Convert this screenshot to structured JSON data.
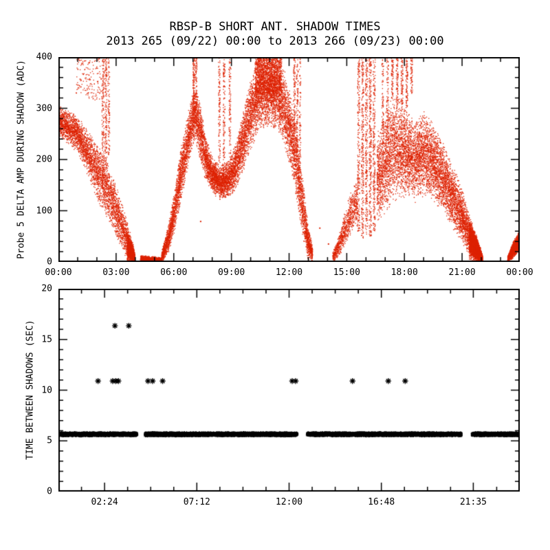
{
  "title": "RBSP-B SHORT ANT. SHADOW TIMES",
  "subtitle": "2013 265 (09/22) 00:00 to 2013 266 (09/23) 00:00",
  "colors": {
    "background": "#ffffff",
    "axis": "#000000",
    "top_panel_points": "#dd2200",
    "bottom_panel_points": "#000000"
  },
  "chart_data": [
    {
      "type": "scatter",
      "id": "delta-amp",
      "panel": "top",
      "ylabel": "Probe 5 DELTA AMP DURING SHADOW (ADC)",
      "marker": "dot",
      "marker_color": "#dd2200",
      "x_range_hours": [
        0,
        24
      ],
      "y_range": [
        0,
        400
      ],
      "x_major_ticks": [
        {
          "hour": 0,
          "label": "00:00"
        },
        {
          "hour": 3,
          "label": "03:00"
        },
        {
          "hour": 6,
          "label": "06:00"
        },
        {
          "hour": 9,
          "label": "09:00"
        },
        {
          "hour": 12,
          "label": "12:00"
        },
        {
          "hour": 15,
          "label": "15:00"
        },
        {
          "hour": 18,
          "label": "18:00"
        },
        {
          "hour": 21,
          "label": "21:00"
        },
        {
          "hour": 24,
          "label": "00:00"
        }
      ],
      "x_minor_step_hours": 1,
      "y_major_ticks": [
        {
          "value": 0,
          "label": "0"
        },
        {
          "value": 100,
          "label": "100"
        },
        {
          "value": 200,
          "label": "200"
        },
        {
          "value": 300,
          "label": "300"
        },
        {
          "value": 400,
          "label": "400"
        }
      ],
      "y_minor_step": 20,
      "bands": [
        {
          "name": "dawn-descend",
          "density": 950,
          "weight": "center",
          "pts": [
            [
              0.0,
              245,
              310
            ],
            [
              0.5,
              228,
              298
            ],
            [
              1.0,
              212,
              286
            ],
            [
              1.5,
              168,
              262
            ],
            [
              2.0,
              118,
              236
            ],
            [
              2.5,
              84,
              204
            ],
            [
              3.0,
              44,
              150
            ],
            [
              3.4,
              14,
              104
            ],
            [
              3.7,
              0,
              62
            ],
            [
              3.95,
              0,
              24
            ]
          ]
        },
        {
          "name": "dawn-blob",
          "density": 3200,
          "weight": "center",
          "pts": [
            [
              3.55,
              0,
              56
            ],
            [
              3.75,
              0,
              44
            ],
            [
              3.95,
              0,
              18
            ]
          ]
        },
        {
          "name": "morning-high-sparse",
          "density": 120,
          "weight": "uniform",
          "pts": [
            [
              0.9,
              330,
              400
            ],
            [
              2.3,
              310,
              400
            ]
          ]
        },
        {
          "name": "early-flat",
          "density": 2700,
          "weight": "bottom",
          "pts": [
            [
              4.25,
              0,
              14
            ],
            [
              4.8,
              0,
              12
            ],
            [
              5.35,
              0,
              10
            ]
          ]
        },
        {
          "name": "mountain",
          "density": 1300,
          "weight": "center",
          "pts": [
            [
              5.35,
              0,
              22
            ],
            [
              5.7,
              14,
              76
            ],
            [
              6.0,
              55,
              140
            ],
            [
              6.3,
              105,
              215
            ],
            [
              6.6,
              160,
              275
            ],
            [
              6.9,
              215,
              325
            ],
            [
              7.1,
              235,
              350
            ],
            [
              7.3,
              205,
              325
            ],
            [
              7.6,
              160,
              255
            ],
            [
              8.0,
              135,
              205
            ],
            [
              8.4,
              120,
              190
            ],
            [
              8.8,
              125,
              200
            ],
            [
              9.2,
              140,
              235
            ],
            [
              9.6,
              175,
              300
            ],
            [
              10.0,
              220,
              370
            ],
            [
              10.4,
              250,
              400
            ],
            [
              10.9,
              265,
              400
            ],
            [
              11.4,
              255,
              400
            ],
            [
              11.8,
              215,
              370
            ],
            [
              12.1,
              170,
              320
            ],
            [
              12.4,
              110,
              260
            ],
            [
              12.7,
              45,
              165
            ],
            [
              12.95,
              5,
              80
            ],
            [
              13.2,
              0,
              30
            ]
          ]
        },
        {
          "name": "midday-top-dense",
          "density": 900,
          "weight": "uniform",
          "pts": [
            [
              10.2,
              330,
              400
            ],
            [
              11.6,
              330,
              400
            ]
          ]
        },
        {
          "name": "afternoon-rise",
          "density": 650,
          "weight": "center",
          "pts": [
            [
              14.25,
              0,
              20
            ],
            [
              14.6,
              10,
              60
            ],
            [
              14.95,
              35,
              110
            ],
            [
              15.3,
              55,
              150
            ],
            [
              15.55,
              70,
              170
            ]
          ]
        },
        {
          "name": "evening-cloud",
          "density": 1250,
          "weight": "center",
          "pts": [
            [
              16.55,
              70,
              255
            ],
            [
              17.0,
              95,
              300
            ],
            [
              17.5,
              115,
              330
            ],
            [
              18.0,
              125,
              310
            ],
            [
              18.5,
              115,
              285
            ],
            [
              19.0,
              130,
              300
            ],
            [
              19.4,
              120,
              275
            ],
            [
              19.8,
              105,
              250
            ],
            [
              20.2,
              85,
              220
            ],
            [
              20.6,
              55,
              185
            ],
            [
              21.0,
              30,
              140
            ],
            [
              21.4,
              10,
              90
            ],
            [
              21.75,
              0,
              50
            ],
            [
              22.05,
              0,
              15
            ]
          ]
        },
        {
          "name": "dusk-wedge-dense",
          "density": 2900,
          "weight": "center",
          "pts": [
            [
              21.35,
              5,
              85
            ],
            [
              21.7,
              0,
              55
            ],
            [
              22.0,
              0,
              20
            ]
          ]
        },
        {
          "name": "night-wedge",
          "density": 2700,
          "weight": "center",
          "pts": [
            [
              23.35,
              0,
              12
            ],
            [
              23.6,
              6,
              38
            ],
            [
              23.8,
              14,
              52
            ],
            [
              24.0,
              24,
              65
            ]
          ]
        }
      ],
      "streaks": [
        {
          "h": 2.3,
          "w": 0.06,
          "lo": 150,
          "hi": 400,
          "n": 160
        },
        {
          "h": 2.45,
          "w": 0.05,
          "lo": 180,
          "hi": 400,
          "n": 140
        },
        {
          "h": 2.6,
          "w": 0.05,
          "lo": 210,
          "hi": 400,
          "n": 90
        },
        {
          "h": 7.02,
          "w": 0.05,
          "lo": 270,
          "hi": 400,
          "n": 130
        },
        {
          "h": 7.15,
          "w": 0.04,
          "lo": 300,
          "hi": 400,
          "n": 80
        },
        {
          "h": 8.35,
          "w": 0.05,
          "lo": 195,
          "hi": 400,
          "n": 110
        },
        {
          "h": 8.6,
          "w": 0.05,
          "lo": 200,
          "hi": 400,
          "n": 120
        },
        {
          "h": 8.9,
          "w": 0.05,
          "lo": 210,
          "hi": 400,
          "n": 100
        },
        {
          "h": 12.25,
          "w": 0.05,
          "lo": 250,
          "hi": 400,
          "n": 110
        },
        {
          "h": 12.4,
          "w": 0.05,
          "lo": 200,
          "hi": 400,
          "n": 120
        },
        {
          "h": 12.55,
          "w": 0.04,
          "lo": 160,
          "hi": 400,
          "n": 90
        },
        {
          "h": 15.6,
          "w": 0.06,
          "lo": 60,
          "hi": 400,
          "n": 220
        },
        {
          "h": 15.8,
          "w": 0.06,
          "lo": 45,
          "hi": 400,
          "n": 260
        },
        {
          "h": 16.0,
          "w": 0.06,
          "lo": 55,
          "hi": 400,
          "n": 240
        },
        {
          "h": 16.2,
          "w": 0.06,
          "lo": 50,
          "hi": 400,
          "n": 280
        },
        {
          "h": 16.4,
          "w": 0.06,
          "lo": 60,
          "hi": 400,
          "n": 230
        },
        {
          "h": 16.85,
          "w": 0.05,
          "lo": 250,
          "hi": 400,
          "n": 80
        },
        {
          "h": 17.1,
          "w": 0.05,
          "lo": 260,
          "hi": 400,
          "n": 80
        },
        {
          "h": 17.35,
          "w": 0.05,
          "lo": 320,
          "hi": 400,
          "n": 70
        },
        {
          "h": 17.6,
          "w": 0.05,
          "lo": 300,
          "hi": 400,
          "n": 90
        },
        {
          "h": 17.85,
          "w": 0.05,
          "lo": 310,
          "hi": 400,
          "n": 80
        },
        {
          "h": 18.1,
          "w": 0.05,
          "lo": 300,
          "hi": 400,
          "n": 90
        },
        {
          "h": 18.35,
          "w": 0.05,
          "lo": 330,
          "hi": 400,
          "n": 60
        }
      ],
      "specks": [
        [
          7.4,
          79
        ],
        [
          13.6,
          66
        ],
        [
          14.05,
          35
        ]
      ]
    },
    {
      "type": "scatter",
      "id": "time-between-shadows",
      "panel": "bottom",
      "ylabel": "TIME BETWEEN SHADOWS (SEC)",
      "marker": "asterisk",
      "marker_color": "#000000",
      "x_range_hours": [
        0,
        24
      ],
      "y_range": [
        0,
        20
      ],
      "x_major_ticks": [
        {
          "hour": 2.4,
          "label": "02:24"
        },
        {
          "hour": 7.2,
          "label": "07:12"
        },
        {
          "hour": 12.0,
          "label": "12:00"
        },
        {
          "hour": 16.8,
          "label": "16:48"
        },
        {
          "hour": 21.5833,
          "label": "21:35"
        }
      ],
      "x_minor_step_hours": 1.2,
      "y_major_ticks": [
        {
          "value": 0,
          "label": "0"
        },
        {
          "value": 5,
          "label": "5"
        },
        {
          "value": 10,
          "label": "10"
        },
        {
          "value": 15,
          "label": "15"
        },
        {
          "value": 20,
          "label": "20"
        }
      ],
      "y_minor_step": 1,
      "baseline": {
        "value_range": [
          5.48,
          5.82
        ],
        "segments_hours": [
          [
            0.08,
            4.08
          ],
          [
            4.52,
            12.42
          ],
          [
            12.95,
            20.95
          ],
          [
            21.52,
            23.98
          ]
        ],
        "density_per_hour": 450
      },
      "outliers": [
        {
          "sec": 10.9,
          "hours": [
            2.06,
            2.82,
            2.98,
            3.12,
            4.66,
            4.9,
            5.42,
            12.16,
            12.34,
            15.3,
            17.16,
            18.04
          ]
        },
        {
          "sec": 16.35,
          "hours": [
            2.94,
            3.66
          ]
        }
      ]
    }
  ]
}
